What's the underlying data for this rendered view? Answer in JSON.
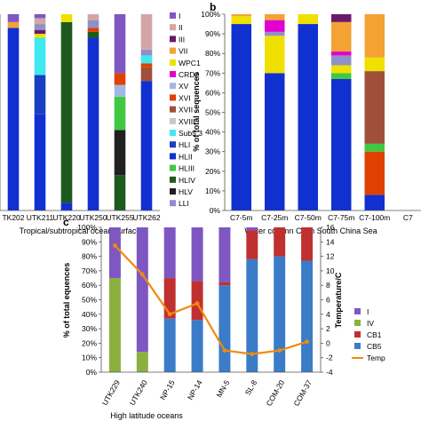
{
  "colors": {
    "I": "#7e57c2",
    "II": "#d4a5a5",
    "III": "#6b1a6b",
    "VII": "#f4a233",
    "WPC1": "#f0e000",
    "CRD2": "#e000d0",
    "XV": "#a0b8e0",
    "XVI": "#e04000",
    "XVII": "#a0503a",
    "XVIII": "#c8c8c8",
    "Sub5.3": "#40e8f0",
    "HLI": "#1a3fc0",
    "HLII": "#1030d0",
    "HLIII": "#40c840",
    "HLIV": "#1e5a1e",
    "HLV": "#202020",
    "LLI": "#9090c8",
    "IV": "#8cb040",
    "CB1": "#c03030",
    "CB5": "#3a7cc8",
    "Temp": "#f08a10"
  },
  "panel_labels": {
    "b": "b",
    "c": "c"
  },
  "chart_data": [
    {
      "type": "bar",
      "stacked": true,
      "xlabel": "Tropical/subtropical ocean surface",
      "categories": [
        "TK202",
        "UTK211",
        "UTK220",
        "UTK250",
        "UTK255",
        "UTK262"
      ],
      "ylim": [
        0,
        100
      ],
      "legend": [
        "I",
        "II",
        "III",
        "VII",
        "WPC1",
        "CRD2",
        "XV",
        "XVI",
        "XVII",
        "XVIII",
        "Sub5.3",
        "HLI",
        "HLII",
        "HLIII",
        "HLIV",
        "HLV",
        "LLI"
      ],
      "series": [
        {
          "name": "HLII",
          "values": [
            93,
            49,
            4,
            88,
            0,
            66
          ]
        },
        {
          "name": "HLIV",
          "values": [
            0,
            0,
            92,
            3,
            18,
            0
          ]
        },
        {
          "name": "HLI",
          "values": [
            0,
            20,
            0,
            0,
            0,
            0
          ]
        },
        {
          "name": "HLV",
          "values": [
            0,
            0,
            0,
            0,
            23,
            0
          ]
        },
        {
          "name": "HLIII",
          "values": [
            0,
            0,
            0,
            0,
            17,
            0
          ]
        },
        {
          "name": "XV",
          "values": [
            0,
            0,
            0,
            0,
            6,
            0
          ]
        },
        {
          "name": "XVII",
          "values": [
            0,
            0,
            0,
            0,
            0,
            7
          ]
        },
        {
          "name": "XVI",
          "values": [
            0,
            0,
            0,
            2,
            6,
            2
          ]
        },
        {
          "name": "Sub5.3",
          "values": [
            0,
            19,
            0,
            0,
            0,
            4
          ]
        },
        {
          "name": "WPC1",
          "values": [
            0,
            2,
            4,
            0,
            0,
            0
          ]
        },
        {
          "name": "VII",
          "values": [
            3,
            0,
            0,
            0,
            0,
            0
          ]
        },
        {
          "name": "III",
          "values": [
            0,
            2,
            0,
            0,
            0,
            0
          ]
        },
        {
          "name": "LLI",
          "values": [
            0,
            3,
            0,
            4,
            0,
            3
          ]
        },
        {
          "name": "II",
          "values": [
            0,
            3,
            0,
            3,
            0,
            18
          ]
        },
        {
          "name": "I",
          "values": [
            4,
            2,
            0,
            0,
            30,
            0
          ]
        }
      ]
    },
    {
      "type": "bar",
      "stacked": true,
      "ylabel": "% of total sequences",
      "xlabel": "Water column C7 in South China Sea",
      "categories": [
        "C7-5m",
        "C7-25m",
        "C7-50m",
        "C7-75m",
        "C7-100m",
        "C7"
      ],
      "ylim": [
        0,
        100
      ],
      "yticks": [
        "0%",
        "10%",
        "20%",
        "30%",
        "40%",
        "50%",
        "60%",
        "70%",
        "80%",
        "90%",
        "100%"
      ],
      "series": [
        {
          "name": "HLII",
          "values": [
            95,
            70,
            95,
            67,
            8,
            0
          ]
        },
        {
          "name": "XVI",
          "values": [
            0,
            0,
            0,
            0,
            22,
            0
          ]
        },
        {
          "name": "HLIII",
          "values": [
            0,
            0,
            0,
            3,
            4,
            0
          ]
        },
        {
          "name": "XVII",
          "values": [
            0,
            0,
            0,
            0,
            37,
            0
          ]
        },
        {
          "name": "WPC1",
          "values": [
            4,
            19,
            5,
            4,
            7,
            0
          ]
        },
        {
          "name": "LLI",
          "values": [
            0,
            2,
            0,
            5,
            0,
            0
          ]
        },
        {
          "name": "CRD2",
          "values": [
            0,
            6,
            0,
            2,
            0,
            0
          ]
        },
        {
          "name": "VII",
          "values": [
            1,
            3,
            0,
            15,
            22,
            0
          ]
        },
        {
          "name": "III",
          "values": [
            0,
            0,
            0,
            4,
            0,
            0
          ]
        }
      ]
    },
    {
      "type": "bar",
      "stacked": true,
      "xlabel": "High latitude oceans",
      "ylabel": "% of total equences",
      "y2label": "Temperature/C",
      "categories": [
        "UTK229",
        "UTK240",
        "NP-15",
        "NP-14",
        "MN-5",
        "SL-8",
        "COM-20",
        "COM-37"
      ],
      "ylim": [
        0,
        100
      ],
      "yticks": [
        "0%",
        "10%",
        "20%",
        "30%",
        "40%",
        "50%",
        "60%",
        "70%",
        "80%",
        "90%",
        "100%"
      ],
      "y2lim": [
        -4,
        16
      ],
      "y2ticks": [
        -4,
        -2,
        0,
        2,
        4,
        6,
        8,
        10,
        12,
        14,
        16
      ],
      "legend": [
        "I",
        "IV",
        "CB1",
        "CB5",
        "Temp"
      ],
      "series": [
        {
          "name": "IV",
          "values": [
            65,
            14,
            0,
            0,
            0,
            0,
            0,
            0
          ]
        },
        {
          "name": "CB5",
          "values": [
            0,
            0,
            37,
            36,
            60,
            78,
            80,
            77
          ]
        },
        {
          "name": "CB1",
          "values": [
            0,
            0,
            28,
            27,
            2,
            20,
            20,
            23
          ]
        },
        {
          "name": "I",
          "values": [
            35,
            86,
            35,
            37,
            38,
            2,
            0,
            0
          ]
        }
      ],
      "line": {
        "name": "Temp",
        "values": [
          13.5,
          9.5,
          4.0,
          5.5,
          -1.0,
          -1.5,
          -1.0,
          0.2
        ]
      }
    }
  ]
}
